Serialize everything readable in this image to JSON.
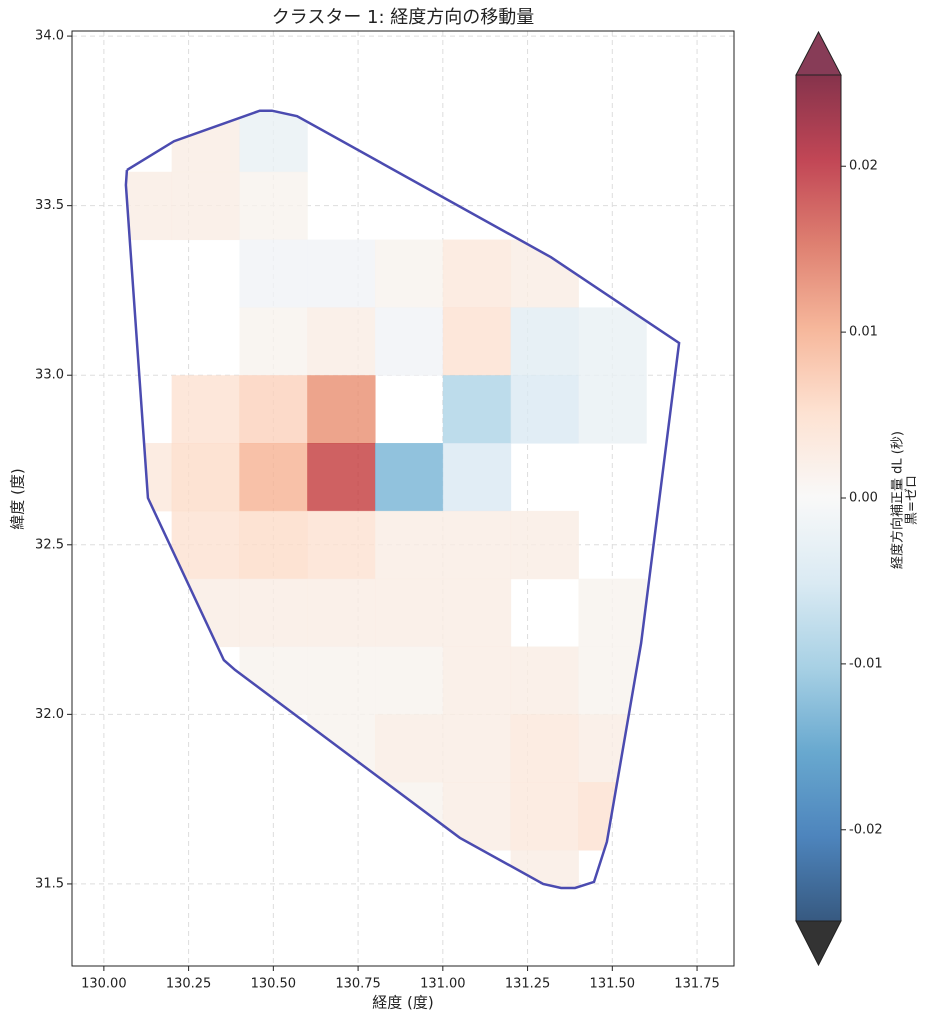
{
  "chart_data": {
    "type": "heatmap",
    "title": "クラスター 1: 経度方向の移動量",
    "xlabel": "経度 (度)",
    "ylabel": "緯度 (度)",
    "x": [
      130.1,
      130.3,
      130.5,
      130.7,
      130.9,
      131.1,
      131.3,
      131.5,
      131.7
    ],
    "y": [
      33.7,
      33.5,
      33.3,
      33.1,
      32.9,
      32.7,
      32.5,
      32.3,
      32.1,
      31.9,
      31.7,
      31.5
    ],
    "cell_size": 0.2,
    "values": [
      [
        null,
        0.002,
        -0.002,
        null,
        null,
        null,
        null,
        null,
        null
      ],
      [
        0.002,
        0.002,
        0.001,
        null,
        null,
        null,
        null,
        null,
        null
      ],
      [
        null,
        null,
        -0.001,
        -0.001,
        0.001,
        0.003,
        0.002,
        null,
        null
      ],
      [
        null,
        null,
        0.001,
        0.002,
        -0.001,
        0.004,
        -0.003,
        -0.002,
        null
      ],
      [
        null,
        0.004,
        0.006,
        0.012,
        null,
        -0.008,
        -0.004,
        -0.002,
        null
      ],
      [
        0.003,
        0.005,
        0.009,
        0.018,
        -0.012,
        -0.004,
        null,
        null,
        null
      ],
      [
        null,
        0.004,
        0.005,
        0.004,
        0.002,
        0.002,
        0.002,
        null,
        null
      ],
      [
        null,
        0.002,
        0.002,
        0.002,
        0.002,
        0.002,
        null,
        0.001,
        null
      ],
      [
        null,
        null,
        0.001,
        0.001,
        0.001,
        0.002,
        0.002,
        0.001,
        null
      ],
      [
        null,
        null,
        null,
        0.001,
        0.002,
        0.002,
        0.003,
        0.002,
        null
      ],
      [
        null,
        null,
        null,
        null,
        0.001,
        0.002,
        0.003,
        0.004,
        null
      ],
      [
        null,
        null,
        null,
        null,
        null,
        null,
        0.002,
        null,
        null
      ]
    ],
    "boundary": {
      "color": "#4b4bb0",
      "lon": [
        130.068,
        130.207,
        130.46,
        130.496,
        130.57,
        131.319,
        131.697,
        131.585,
        131.484,
        131.446,
        131.39,
        131.349,
        131.296,
        131.05,
        130.387,
        130.354,
        130.13,
        130.065,
        130.068
      ],
      "lat": [
        33.605,
        33.69,
        33.78,
        33.78,
        33.764,
        33.348,
        33.095,
        32.21,
        31.624,
        31.506,
        31.488,
        31.488,
        31.5,
        31.636,
        32.131,
        32.16,
        32.638,
        33.561,
        33.605
      ]
    },
    "xlim": [
      129.906,
      131.859
    ],
    "ylim": [
      31.258,
      34.015
    ],
    "xticks": [
      {
        "value": 130,
        "label": "130.00"
      },
      130.25,
      {
        "value": 130.5,
        "label": "130.50"
      },
      130.75,
      {
        "value": 131,
        "label": "131.00"
      },
      131.25,
      {
        "value": 131.5,
        "label": "131.50"
      },
      131.75
    ],
    "yticks": [
      31.5,
      {
        "value": 32,
        "label": "32.0"
      },
      32.5,
      {
        "value": 33,
        "label": "33.0"
      },
      33.5,
      {
        "value": 34,
        "label": "34.0"
      }
    ],
    "grid": true,
    "cmap": "RdBu_r",
    "clim": [
      -0.0255,
      0.0255
    ],
    "cticks": [
      -0.02,
      -0.01,
      {
        "value": 0,
        "label": "0.00"
      },
      0.01,
      0.02
    ],
    "over_color": "#7a2745",
    "under_color": "#333333",
    "colorbar_label": [
      "経度方向補正量 dL (秒)",
      "黒=ゼロ"
    ]
  }
}
